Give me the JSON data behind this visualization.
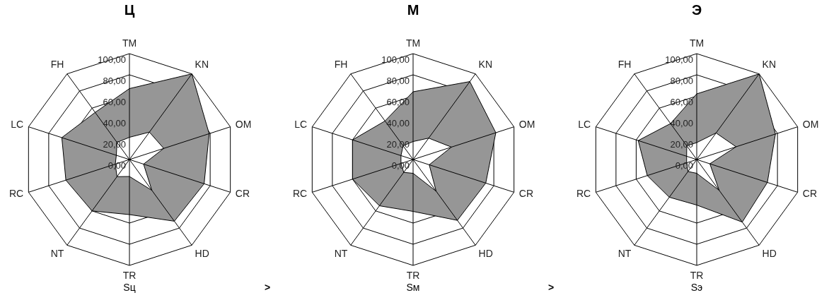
{
  "chart_data": [
    {
      "type": "radar",
      "title": "Ц",
      "categories": [
        "TM",
        "KN",
        "OM",
        "CR",
        "HD",
        "TR",
        "NT",
        "RC",
        "LC",
        "FH"
      ],
      "series": [
        {
          "color": "#969696",
          "values": [
            67,
            100,
            79,
            74,
            72,
            52,
            60,
            63,
            67,
            55
          ]
        },
        {
          "color": "#ffffff",
          "values": [
            21,
            32,
            34,
            14,
            36,
            16,
            20,
            14,
            13,
            20
          ]
        }
      ],
      "ylim": [
        0,
        100
      ],
      "yticks": [
        {
          "value": 0,
          "label": "0,00"
        },
        {
          "value": 20,
          "label": "20,00"
        },
        {
          "value": 40,
          "label": "40,00"
        },
        {
          "value": 60,
          "label": "60,00"
        },
        {
          "value": 80,
          "label": "80,00"
        },
        {
          "value": 100,
          "label": "100,00"
        }
      ],
      "grid": true,
      "annotations": [
        "Sц",
        ">"
      ]
    },
    {
      "type": "radar",
      "title": "М",
      "categories": [
        "TM",
        "KN",
        "OM",
        "CR",
        "HD",
        "TR",
        "NT",
        "RC",
        "LC",
        "FH"
      ],
      "series": [
        {
          "color": "#969696",
          "values": [
            64,
            91,
            82,
            72,
            71,
            49,
            54,
            60,
            60,
            45
          ]
        },
        {
          "color": "#ffffff",
          "values": [
            17,
            25,
            38,
            16,
            37,
            13,
            15,
            12,
            12,
            16
          ]
        }
      ],
      "ylim": [
        0,
        100
      ],
      "yticks": [
        {
          "value": 0,
          "label": "0,00"
        },
        {
          "value": 20,
          "label": "20,00"
        },
        {
          "value": 40,
          "label": "40,00"
        },
        {
          "value": 60,
          "label": "60,00"
        },
        {
          "value": 80,
          "label": "80,00"
        },
        {
          "value": 100,
          "label": "100,00"
        }
      ],
      "grid": true,
      "annotations": [
        "Sм",
        ">"
      ]
    },
    {
      "type": "radar",
      "title": "Э",
      "categories": [
        "TM",
        "KN",
        "OM",
        "CR",
        "HD",
        "TR",
        "NT",
        "RC",
        "LC",
        "FH"
      ],
      "series": [
        {
          "color": "#969696",
          "values": [
            62,
            100,
            78,
            70,
            73,
            43,
            44,
            49,
            58,
            42
          ]
        },
        {
          "color": "#ffffff",
          "values": [
            16,
            31,
            39,
            13,
            36,
            13,
            14,
            10,
            10,
            16
          ]
        }
      ],
      "ylim": [
        0,
        100
      ],
      "yticks": [
        {
          "value": 0,
          "label": "0,00"
        },
        {
          "value": 20,
          "label": "20,00"
        },
        {
          "value": 40,
          "label": "40,00"
        },
        {
          "value": 60,
          "label": "60,00"
        },
        {
          "value": 80,
          "label": "80,00"
        },
        {
          "value": 100,
          "label": "100,00"
        }
      ],
      "grid": true,
      "annotations": [
        "Sэ"
      ]
    }
  ]
}
